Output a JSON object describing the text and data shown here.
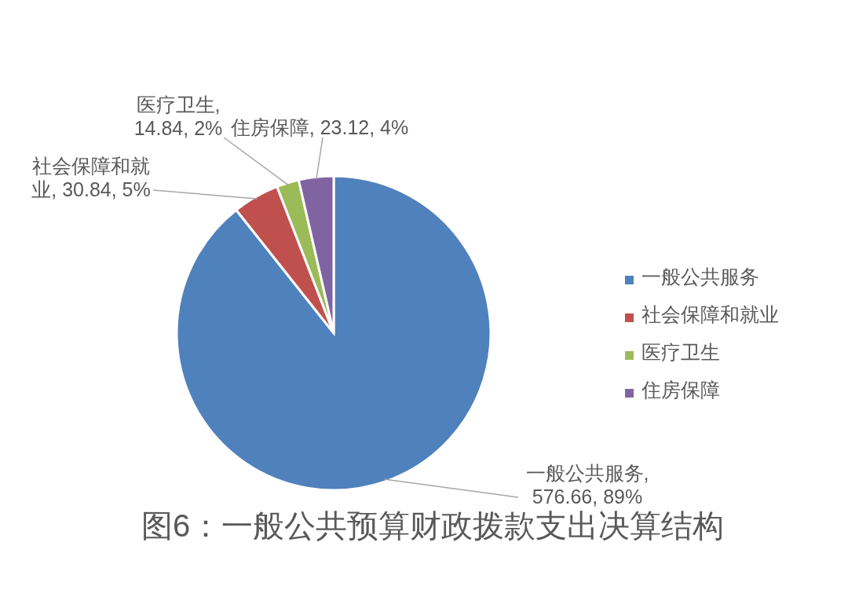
{
  "chart_data": {
    "type": "pie",
    "title": "图6：一般公共预算财政拨款支出决算结构",
    "categories": [
      "一般公共服务",
      "社会保障和就业",
      "医疗卫生",
      "住房保障"
    ],
    "values": [
      576.66,
      30.84,
      14.84,
      23.12
    ],
    "colors": [
      "#4f81bd",
      "#c0504d",
      "#9bbb59",
      "#8064a2"
    ],
    "value_labels": [
      "一般公共服务, 576.66, 89%",
      "社会保障和就业, 30.84, 5%",
      "医疗卫生, 14.84, 2%",
      "住房保障, 23.12, 4%"
    ],
    "legend": "right"
  }
}
